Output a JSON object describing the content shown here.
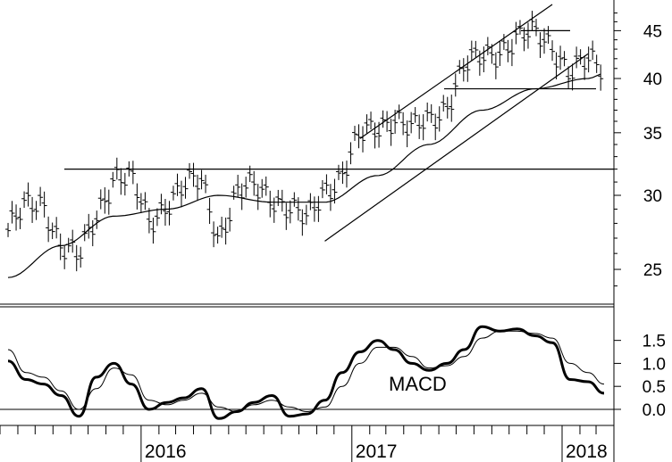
{
  "chart_data": [
    {
      "type": "ohlc",
      "title": "",
      "xlabel": "",
      "ylabel": "",
      "y_scale": "log",
      "ylim": [
        23,
        48
      ],
      "y_ticks": [
        25,
        30,
        35,
        40,
        45
      ],
      "x_ticks": [
        "2016",
        "2017",
        "2018"
      ],
      "x_range": [
        "2015-05",
        "2018-04"
      ],
      "grid": false,
      "series": [
        {
          "kind": "weekly price bars",
          "x": [
            "2015-05",
            "2015-06",
            "2015-07",
            "2015-08",
            "2015-09",
            "2015-10",
            "2015-11",
            "2015-12",
            "2016-01",
            "2016-02",
            "2016-03",
            "2016-04",
            "2016-05",
            "2016-06",
            "2016-07",
            "2016-08",
            "2016-09",
            "2016-10",
            "2016-11",
            "2016-12",
            "2017-01",
            "2017-02",
            "2017-03",
            "2017-04",
            "2017-05",
            "2017-06",
            "2017-07",
            "2017-08",
            "2017-09",
            "2017-10",
            "2017-11",
            "2017-12",
            "2018-01",
            "2018-02",
            "2018-03"
          ],
          "values": [
            27.5,
            29.0,
            29.5,
            26.5,
            25.5,
            28.5,
            31.5,
            31.0,
            28.0,
            29.5,
            30.5,
            31.0,
            27.0,
            30.0,
            30.5,
            30.0,
            29.0,
            28.0,
            30.5,
            31.5,
            34.5,
            35.5,
            36.5,
            35.0,
            36.0,
            37.5,
            41.0,
            42.0,
            43.0,
            44.0,
            44.5,
            43.5,
            40.5,
            41.5,
            41.0
          ]
        },
        {
          "kind": "moving average",
          "x": [
            "2015-05",
            "2015-08",
            "2015-11",
            "2016-02",
            "2016-05",
            "2016-08",
            "2016-11",
            "2017-02",
            "2017-05",
            "2017-08",
            "2017-11",
            "2018-02",
            "2018-03"
          ],
          "values": [
            24.5,
            26.5,
            28.5,
            29.0,
            30.0,
            29.5,
            29.5,
            31.5,
            34.0,
            37.0,
            39.0,
            40.0,
            40.5
          ]
        }
      ],
      "lines": [
        {
          "kind": "horizontal",
          "y": 32
        },
        {
          "kind": "horizontal",
          "y": 45
        },
        {
          "kind": "horizontal",
          "y": 39
        },
        {
          "kind": "trendline",
          "from": [
            "2016-11",
            26.8
          ],
          "to": [
            "2018-02",
            42.5
          ]
        },
        {
          "kind": "trendline",
          "from": [
            "2017-01",
            34.5
          ],
          "to": [
            "2017-12",
            48
          ]
        }
      ]
    },
    {
      "type": "line",
      "title": "",
      "label": "MACD",
      "xlabel": "",
      "ylabel": "",
      "ylim": [
        -0.35,
        2.25
      ],
      "y_ticks": [
        0.0,
        0.5,
        1.0,
        1.5
      ],
      "y_tick_labels": [
        "0.0",
        "0.5",
        "1.0",
        "1.5"
      ],
      "zero_line": true,
      "series": [
        {
          "kind": "MACD",
          "x": [
            "2015-05",
            "2015-06",
            "2015-07",
            "2015-08",
            "2015-09",
            "2015-10",
            "2015-11",
            "2015-12",
            "2016-01",
            "2016-02",
            "2016-03",
            "2016-04",
            "2016-05",
            "2016-06",
            "2016-07",
            "2016-08",
            "2016-09",
            "2016-10",
            "2016-11",
            "2016-12",
            "2017-01",
            "2017-02",
            "2017-03",
            "2017-04",
            "2017-05",
            "2017-06",
            "2017-07",
            "2017-08",
            "2017-09",
            "2017-10",
            "2017-11",
            "2017-12",
            "2018-01",
            "2018-02",
            "2018-03"
          ],
          "values": [
            1.05,
            0.65,
            0.55,
            0.3,
            -0.15,
            0.7,
            1.0,
            0.55,
            0.0,
            0.15,
            0.25,
            0.45,
            -0.2,
            -0.05,
            0.15,
            0.3,
            -0.15,
            -0.1,
            0.2,
            0.8,
            1.25,
            1.5,
            1.3,
            1.0,
            0.85,
            1.0,
            1.3,
            1.8,
            1.7,
            1.75,
            1.6,
            1.45,
            0.65,
            0.6,
            0.35
          ]
        },
        {
          "kind": "signal",
          "x": [
            "2015-05",
            "2015-06",
            "2015-07",
            "2015-08",
            "2015-09",
            "2015-10",
            "2015-11",
            "2015-12",
            "2016-01",
            "2016-02",
            "2016-03",
            "2016-04",
            "2016-05",
            "2016-06",
            "2016-07",
            "2016-08",
            "2016-09",
            "2016-10",
            "2016-11",
            "2016-12",
            "2017-01",
            "2017-02",
            "2017-03",
            "2017-04",
            "2017-05",
            "2017-06",
            "2017-07",
            "2017-08",
            "2017-09",
            "2017-10",
            "2017-11",
            "2017-12",
            "2018-01",
            "2018-02",
            "2018-03"
          ],
          "values": [
            1.3,
            0.8,
            0.7,
            0.4,
            0.0,
            0.45,
            0.9,
            0.75,
            0.2,
            0.1,
            0.2,
            0.35,
            0.05,
            -0.05,
            0.1,
            0.2,
            0.05,
            -0.05,
            0.05,
            0.5,
            1.0,
            1.35,
            1.35,
            1.15,
            0.9,
            0.95,
            1.15,
            1.55,
            1.7,
            1.7,
            1.65,
            1.55,
            1.0,
            0.8,
            0.55
          ]
        }
      ]
    }
  ]
}
